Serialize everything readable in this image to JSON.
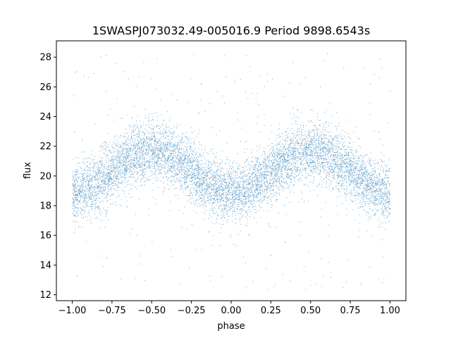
{
  "chart_data": {
    "type": "scatter",
    "title": "1SWASPJ073032.49-005016.9 Period 9898.6543s",
    "xlabel": "phase",
    "ylabel": "flux",
    "xlim": [
      -1.1,
      1.1
    ],
    "ylim": [
      11.6,
      29.1
    ],
    "xticks": [
      -1.0,
      -0.75,
      -0.5,
      -0.25,
      0.0,
      0.25,
      0.5,
      0.75,
      1.0
    ],
    "xtick_labels": [
      "−1.00",
      "−0.75",
      "−0.50",
      "−0.25",
      "0.00",
      "0.25",
      "0.50",
      "0.75",
      "1.00"
    ],
    "yticks": [
      12,
      14,
      16,
      18,
      20,
      22,
      24,
      26,
      28
    ],
    "ytick_labels": [
      "12",
      "14",
      "16",
      "18",
      "20",
      "22",
      "24",
      "26",
      "28"
    ],
    "grid": false,
    "point_color": "#1f77b4",
    "series": [
      {
        "description_of_trend": "phase-folded light curve, roughly sinusoidal",
        "phase_range": [
          -1.0,
          1.0
        ],
        "mean_flux": 20.3,
        "amplitude": 1.4,
        "max_phase": [
          -0.5,
          0.5
        ],
        "min_phase": [
          -1.0,
          0.0,
          1.0
        ],
        "scatter_std": 1.0,
        "outlier_range": [
          12.3,
          28.3
        ]
      }
    ]
  }
}
